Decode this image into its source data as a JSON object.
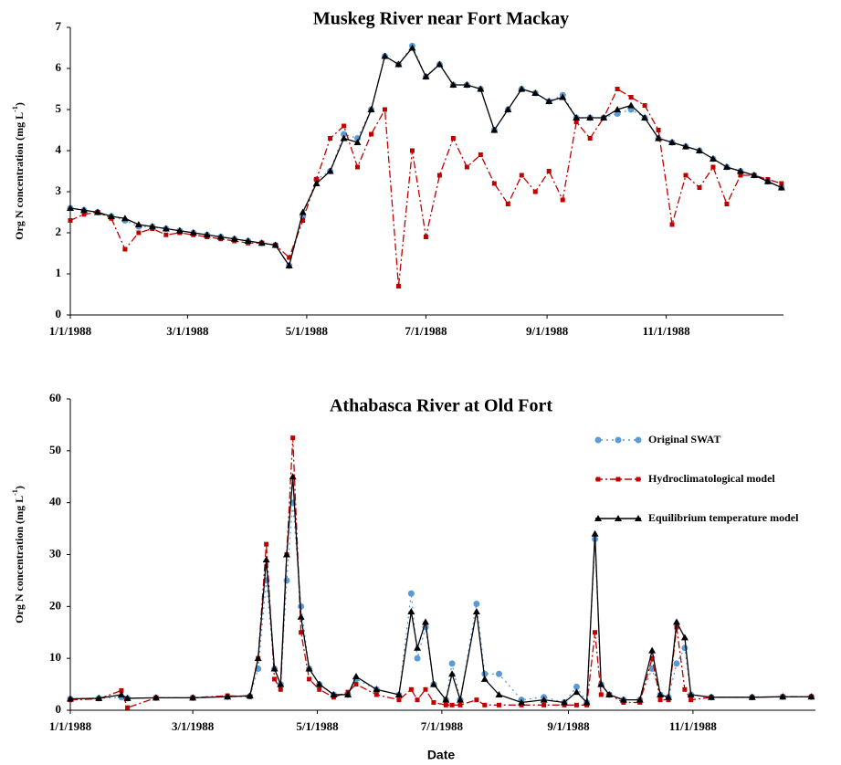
{
  "chart_data": [
    {
      "type": "line",
      "title": "Muskeg River near Fort Mackay",
      "y_label": "Org N concentration (mg L",
      "y_label_sup": "-1",
      "y_label_end": ")",
      "x": [
        "1/1/1988",
        "1/8/1988",
        "1/15/1988",
        "1/22/1988",
        "1/29/1988",
        "2/5/1988",
        "2/12/1988",
        "2/19/1988",
        "2/26/1988",
        "3/4/1988",
        "3/11/1988",
        "3/18/1988",
        "3/25/1988",
        "4/1/1988",
        "4/8/1988",
        "4/15/1988",
        "4/22/1988",
        "4/29/1988",
        "5/6/1988",
        "5/13/1988",
        "5/20/1988",
        "5/27/1988",
        "6/3/1988",
        "6/10/1988",
        "6/17/1988",
        "6/24/1988",
        "7/1/1988",
        "7/8/1988",
        "7/15/1988",
        "7/22/1988",
        "7/29/1988",
        "8/5/1988",
        "8/12/1988",
        "8/19/1988",
        "8/26/1988",
        "9/2/1988",
        "9/9/1988",
        "9/16/1988",
        "9/23/1988",
        "9/30/1988",
        "10/7/1988",
        "10/14/1988",
        "10/21/1988",
        "10/28/1988",
        "11/4/1988",
        "11/11/1988",
        "11/18/1988",
        "11/25/1988",
        "12/2/1988",
        "12/9/1988",
        "12/16/1988",
        "12/23/1988",
        "12/30/1988"
      ],
      "series": [
        {
          "color": "#5b9bd5",
          "line_style": "dotted",
          "marker": "circle",
          "values": [
            2.6,
            2.55,
            2.5,
            2.4,
            2.3,
            2.15,
            2.15,
            2.1,
            2.05,
            2.0,
            1.95,
            1.9,
            1.85,
            1.8,
            1.75,
            1.7,
            1.2,
            2.4,
            3.3,
            3.5,
            4.4,
            4.3,
            5.0,
            6.3,
            6.1,
            6.55,
            5.8,
            6.1,
            5.6,
            5.6,
            5.5,
            4.5,
            5.0,
            5.5,
            5.4,
            5.2,
            5.35,
            4.8,
            4.8,
            4.8,
            4.9,
            5.0,
            4.8,
            4.3,
            4.2,
            4.1,
            4.0,
            3.8,
            3.6,
            3.5,
            3.4,
            3.25,
            3.1
          ]
        },
        {
          "color": "#c00000",
          "line_style": "dashdot",
          "marker": "square",
          "values": [
            2.3,
            2.45,
            2.5,
            2.35,
            1.6,
            2.0,
            2.1,
            1.95,
            2.0,
            1.95,
            1.9,
            1.85,
            1.8,
            1.75,
            1.75,
            1.7,
            1.4,
            2.3,
            3.3,
            4.3,
            4.6,
            3.6,
            4.4,
            5.0,
            0.7,
            4.0,
            1.9,
            3.4,
            4.3,
            3.6,
            3.9,
            3.2,
            2.7,
            3.4,
            3.0,
            3.5,
            2.8,
            4.7,
            4.3,
            4.8,
            5.5,
            5.3,
            5.1,
            4.5,
            2.2,
            3.4,
            3.1,
            3.6,
            2.7,
            3.4,
            3.4,
            3.3,
            3.2
          ]
        },
        {
          "color": "#000000",
          "line_style": "solid",
          "marker": "triangle",
          "values": [
            2.6,
            2.55,
            2.5,
            2.4,
            2.35,
            2.2,
            2.15,
            2.1,
            2.05,
            2.0,
            1.95,
            1.9,
            1.85,
            1.8,
            1.75,
            1.7,
            1.2,
            2.5,
            3.2,
            3.5,
            4.3,
            4.2,
            5.0,
            6.3,
            6.1,
            6.5,
            5.8,
            6.1,
            5.6,
            5.6,
            5.5,
            4.5,
            5.0,
            5.5,
            5.4,
            5.2,
            5.3,
            4.8,
            4.8,
            4.8,
            5.0,
            5.1,
            4.8,
            4.3,
            4.2,
            4.1,
            4.0,
            3.8,
            3.6,
            3.5,
            3.4,
            3.25,
            3.1
          ]
        }
      ],
      "xlim": [
        "1/1/1988",
        "12/31/1988"
      ],
      "xticks": [
        "1/1/1988",
        "3/1/1988",
        "5/1/1988",
        "7/1/1988",
        "9/1/1988",
        "11/1/1988"
      ],
      "ylim": [
        0,
        7
      ],
      "yticks": [
        0,
        1,
        2,
        3,
        4,
        5,
        6,
        7
      ],
      "grid": false
    },
    {
      "type": "line",
      "title": "Athabasca River at Old Fort",
      "y_label": "Org N concentration (mg L",
      "y_label_sup": "-1",
      "y_label_end": ")",
      "x_label": "Date",
      "x": [
        "1/1/1988",
        "1/15/1988",
        "1/26/1988",
        "1/29/1988",
        "2/12/1988",
        "3/1/1988",
        "3/18/1988",
        "3/29/1988",
        "4/2/1988",
        "4/6/1988",
        "4/10/1988",
        "4/13/1988",
        "4/16/1988",
        "4/19/1988",
        "4/23/1988",
        "4/27/1988",
        "5/2/1988",
        "5/9/1988",
        "5/16/1988",
        "5/20/1988",
        "5/30/1988",
        "6/10/1988",
        "6/16/1988",
        "6/19/1988",
        "6/23/1988",
        "6/27/1988",
        "7/3/1988",
        "7/6/1988",
        "7/10/1988",
        "7/18/1988",
        "7/22/1988",
        "7/29/1988",
        "8/9/1988",
        "8/20/1988",
        "8/30/1988",
        "9/5/1988",
        "9/10/1988",
        "9/14/1988",
        "9/17/1988",
        "9/21/1988",
        "9/28/1988",
        "10/6/1988",
        "10/12/1988",
        "10/16/1988",
        "10/20/1988",
        "10/24/1988",
        "10/28/1988",
        "10/31/1988",
        "11/10/1988",
        "11/30/1988",
        "12/15/1988",
        "12/29/1988"
      ],
      "series": [
        {
          "name": "Original SWAT",
          "color": "#5b9bd5",
          "line_style": "dotted",
          "marker": "circle",
          "values": [
            2.2,
            2.3,
            2.5,
            2.3,
            2.4,
            2.4,
            2.6,
            2.7,
            8,
            25,
            8,
            5,
            25,
            40,
            20,
            8,
            5,
            3,
            3,
            6,
            4,
            3,
            22.5,
            10,
            16,
            5,
            2,
            9,
            2,
            20.5,
            7,
            7,
            2,
            2.5,
            1.5,
            4.5,
            1.5,
            33,
            5,
            3,
            2,
            2,
            8,
            3,
            2.5,
            9,
            12,
            3,
            2.5,
            2.5,
            2.6,
            2.6
          ]
        },
        {
          "name": "Hydroclimatological model",
          "color": "#c00000",
          "line_style": "dashdot",
          "marker": "square",
          "values": [
            2.0,
            2.2,
            3.8,
            0.5,
            2.4,
            2.4,
            2.8,
            2.6,
            10,
            32,
            6,
            4,
            30,
            52.5,
            15,
            6,
            4,
            2.5,
            3.5,
            5,
            3,
            2,
            4,
            2,
            4,
            1.5,
            1,
            1,
            1,
            2,
            1,
            1,
            1,
            1,
            1,
            1,
            1,
            15,
            3,
            3,
            1.5,
            1.5,
            10,
            2,
            2,
            16,
            4,
            2,
            2.5,
            2.5,
            2.6,
            2.6
          ]
        },
        {
          "name": "Equilibrium temperature model",
          "color": "#000000",
          "line_style": "solid",
          "marker": "triangle",
          "values": [
            2.2,
            2.3,
            3.0,
            2.3,
            2.4,
            2.4,
            2.6,
            2.8,
            10,
            29,
            8,
            5,
            30,
            45,
            18,
            8,
            5,
            3,
            3,
            6.5,
            4,
            3,
            19,
            12,
            17,
            5,
            2,
            7,
            2,
            19,
            6,
            3,
            1.5,
            2,
            1.5,
            3.5,
            1.5,
            34,
            5,
            3,
            2,
            2,
            11.5,
            3,
            2.5,
            17,
            14,
            3,
            2.5,
            2.5,
            2.6,
            2.6
          ]
        }
      ],
      "xlim": [
        "1/1/1988",
        "12/31/1988"
      ],
      "xticks": [
        "1/1/1988",
        "3/1/1988",
        "5/1/1988",
        "7/1/1988",
        "9/1/1988",
        "11/1/1988"
      ],
      "ylim": [
        0,
        60
      ],
      "yticks": [
        0,
        10,
        20,
        30,
        40,
        50,
        60
      ],
      "grid": false,
      "legend": "top-right"
    }
  ]
}
